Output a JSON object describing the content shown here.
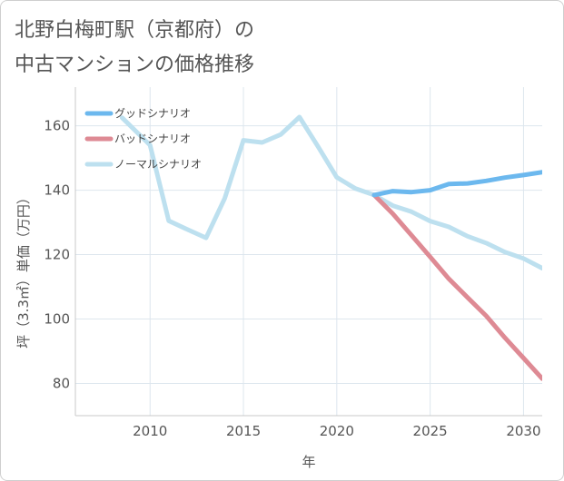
{
  "title_line1": "北野白梅町駅（京都府）の",
  "title_line2": "中古マンションの価格推移",
  "chart_data": {
    "type": "line",
    "xlabel": "年",
    "ylabel": "坪（3.3㎡）単価（万円）",
    "xlim": [
      2006,
      2031
    ],
    "ylim": [
      70,
      172
    ],
    "xticks": [
      2010,
      2015,
      2020,
      2025,
      2030
    ],
    "yticks": [
      80,
      100,
      120,
      140,
      160
    ],
    "grid": true,
    "legend_position": "top-left",
    "series": [
      {
        "name": "グッドシナリオ",
        "color": "#6cb8ee",
        "x": [
          2022,
          2023,
          2024,
          2025,
          2026,
          2027,
          2028,
          2029,
          2030,
          2031
        ],
        "y": [
          138.5,
          139.7,
          139.4,
          140.0,
          141.9,
          142.1,
          142.9,
          143.9,
          144.7,
          145.6
        ]
      },
      {
        "name": "バッドシナリオ",
        "color": "#de8a94",
        "x": [
          2022,
          2023,
          2024,
          2025,
          2026,
          2027,
          2028,
          2029,
          2030,
          2031
        ],
        "y": [
          138.5,
          132.7,
          126.0,
          119.3,
          112.5,
          106.7,
          101.0,
          94.2,
          87.9,
          81.5
        ]
      },
      {
        "name": "ノーマルシナリオ",
        "color": "#bde0ef",
        "x": [
          2008.5,
          2010,
          2011,
          2012,
          2013,
          2014,
          2015,
          2016,
          2017,
          2018,
          2019,
          2020,
          2021,
          2022,
          2023,
          2024,
          2025,
          2026,
          2027,
          2028,
          2029,
          2030,
          2031
        ],
        "y": [
          162.5,
          154.0,
          130.5,
          127.8,
          125.2,
          137.5,
          155.5,
          154.8,
          157.3,
          162.7,
          153.5,
          144.0,
          140.5,
          138.5,
          135.2,
          133.3,
          130.4,
          128.6,
          125.7,
          123.6,
          120.8,
          118.8,
          115.8
        ]
      }
    ]
  }
}
